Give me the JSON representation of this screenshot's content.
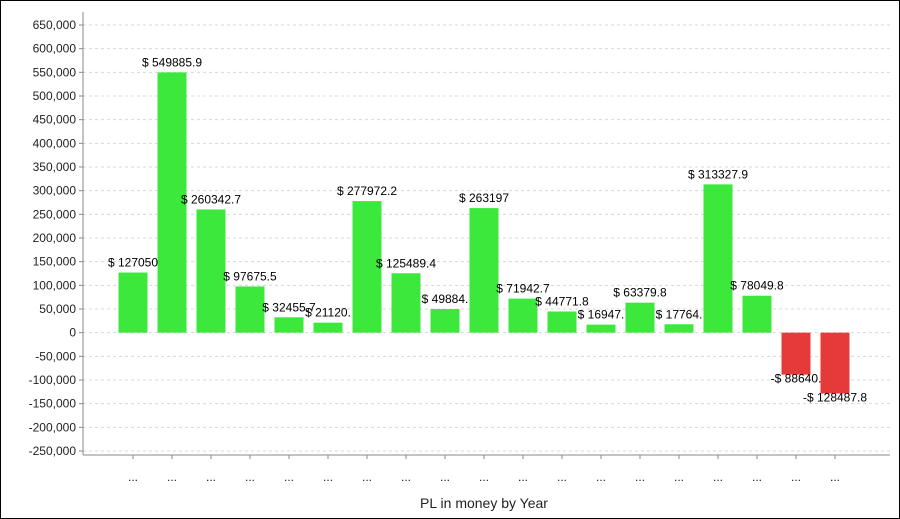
{
  "chart_data": {
    "type": "bar",
    "title": "",
    "xlabel": "PL in money by Year",
    "ylabel": "",
    "ylim": [
      -250000,
      650000
    ],
    "y_ticks": [
      650000,
      600000,
      550000,
      500000,
      450000,
      400000,
      350000,
      300000,
      250000,
      200000,
      150000,
      100000,
      50000,
      0,
      -50000,
      -100000,
      -150000,
      -200000,
      -250000
    ],
    "y_tick_labels": [
      "650,000",
      "600,000",
      "550,000",
      "500,000",
      "450,000",
      "400,000",
      "350,000",
      "300,000",
      "250,000",
      "200,000",
      "150,000",
      "100,000",
      "50,000",
      "0",
      "-50,000",
      "-100,000",
      "-150,000",
      "-200,000",
      "-250,000"
    ],
    "categories": [
      "...",
      "...",
      "...",
      "...",
      "...",
      "...",
      "...",
      "...",
      "...",
      "...",
      "...",
      "...",
      "...",
      "...",
      "...",
      "...",
      "...",
      "...",
      "..."
    ],
    "values": [
      127050,
      549885.9,
      260342.7,
      97675.5,
      32455.7,
      21120,
      277972.2,
      125489.4,
      49884,
      263197,
      71942.7,
      44771.8,
      16947,
      63379.8,
      17764,
      313327.9,
      78049.8,
      -88640,
      -128487.8
    ],
    "data_labels": [
      "$ 127050",
      "$ 549885.9",
      "$ 260342.7",
      "$ 97675.5",
      "$ 32455.7",
      "$ 21120.",
      "$ 277972.2",
      "$ 125489.4",
      "$ 49884.",
      "$ 263197",
      "$ 71942.7",
      "$ 44771.8",
      "$ 16947.",
      "$ 63379.8",
      "$ 17764.",
      "$ 313327.9",
      "$ 78049.8",
      "-$ 88640.",
      "-$ 128487.8"
    ],
    "grid": true,
    "legend": "none",
    "colors": {
      "positive": "#3de83d",
      "negative": "#e63a3a",
      "grid": "#d8d8d8",
      "axis": "#888888"
    }
  }
}
